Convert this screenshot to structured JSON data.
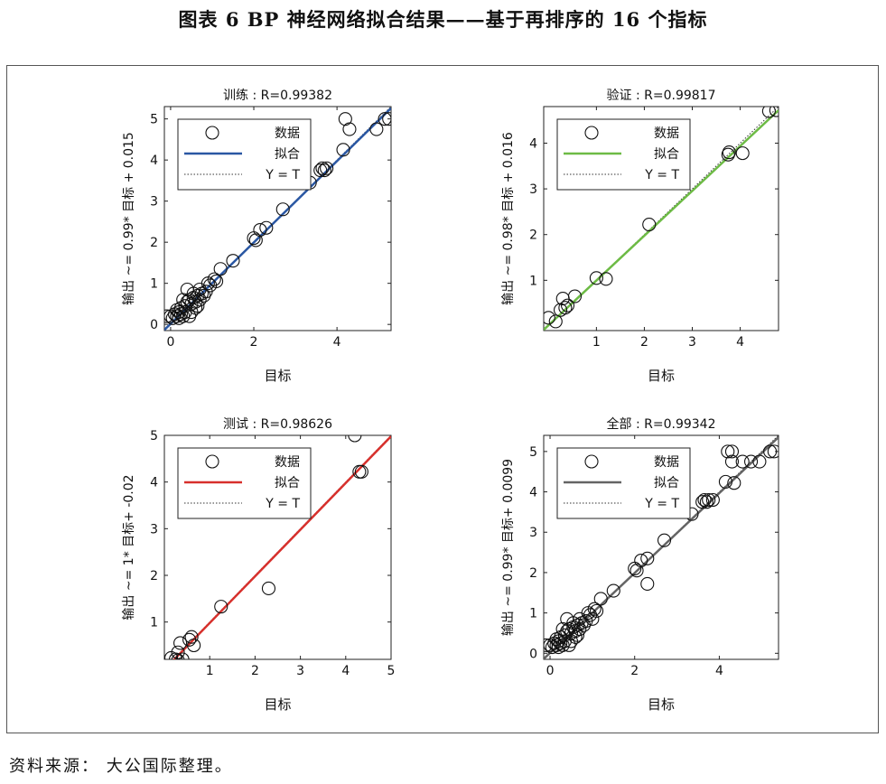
{
  "figure": {
    "title": "图表 6  BP 神经网络拟合结果——基于再排序的 16 个指标",
    "source": "资料来源： 大公国际整理。"
  },
  "chart_data": [
    {
      "type": "scatter",
      "title": "训练 : R=0.99382",
      "xlabel": "目标",
      "ylabel": "输出 ~= 0.99* 目标 + 0.015",
      "xlim": [
        -0.15,
        5.3
      ],
      "ylim": [
        -0.15,
        5.3
      ],
      "xticks": [
        0,
        2,
        4
      ],
      "yticks": [
        0,
        1,
        2,
        3,
        4,
        5
      ],
      "fit": {
        "slope": 0.99,
        "intercept": 0.015,
        "color": "#2a57a3"
      },
      "legend": {
        "position": "top-left",
        "entries": [
          "数据",
          "拟合",
          "Y = T"
        ]
      },
      "points": [
        [
          -0.1,
          0.2
        ],
        [
          0,
          0.2
        ],
        [
          0.05,
          0.15
        ],
        [
          0.1,
          0.25
        ],
        [
          0.15,
          0.2
        ],
        [
          0.2,
          0.3
        ],
        [
          0.25,
          0.4
        ],
        [
          0.3,
          0.2
        ],
        [
          0.35,
          0.45
        ],
        [
          0.4,
          0.55
        ],
        [
          0.45,
          0.6
        ],
        [
          0.5,
          0.5
        ],
        [
          0.55,
          0.65
        ],
        [
          0.6,
          0.55
        ],
        [
          0.65,
          0.7
        ],
        [
          0.7,
          0.6
        ],
        [
          0.75,
          0.75
        ],
        [
          0.8,
          0.7
        ],
        [
          0.85,
          0.8
        ],
        [
          0.95,
          0.95
        ],
        [
          1.05,
          1.1
        ],
        [
          1.1,
          1.05
        ],
        [
          0.3,
          0.6
        ],
        [
          0.4,
          0.85
        ],
        [
          0.5,
          0.3
        ],
        [
          0.6,
          0.4
        ],
        [
          0.2,
          0.15
        ],
        [
          0.35,
          0.3
        ],
        [
          0.45,
          0.2
        ],
        [
          0.55,
          0.75
        ],
        [
          0.7,
          0.85
        ],
        [
          0.9,
          1.0
        ],
        [
          1.2,
          1.35
        ],
        [
          1.5,
          1.55
        ],
        [
          2.0,
          2.1
        ],
        [
          2.05,
          2.05
        ],
        [
          2.15,
          2.3
        ],
        [
          2.3,
          2.35
        ],
        [
          2.7,
          2.8
        ],
        [
          3.35,
          3.45
        ],
        [
          3.6,
          3.75
        ],
        [
          3.65,
          3.8
        ],
        [
          3.7,
          3.75
        ],
        [
          3.75,
          3.8
        ],
        [
          4.15,
          4.25
        ],
        [
          4.2,
          5.0
        ],
        [
          4.3,
          4.75
        ],
        [
          4.95,
          4.75
        ],
        [
          5.15,
          5.0
        ],
        [
          5.25,
          5.0
        ],
        [
          0.15,
          0.35
        ],
        [
          0.25,
          0.25
        ],
        [
          0.65,
          0.45
        ]
      ]
    },
    {
      "type": "scatter",
      "title": "验证 : R=0.99817",
      "xlabel": "目标",
      "ylabel": "输出 ~= 0.98* 目标 + 0.016",
      "xlim": [
        -0.1,
        4.8
      ],
      "ylim": [
        -0.1,
        4.8
      ],
      "xticks": [
        1,
        2,
        3,
        4
      ],
      "yticks": [
        1,
        2,
        3,
        4
      ],
      "fit": {
        "slope": 0.98,
        "intercept": 0.016,
        "color": "#6dbb45"
      },
      "legend": {
        "position": "top-left",
        "entries": [
          "数据",
          "拟合",
          "Y = T"
        ]
      },
      "points": [
        [
          0,
          0.18
        ],
        [
          0.15,
          0.1
        ],
        [
          0.25,
          0.35
        ],
        [
          0.3,
          0.6
        ],
        [
          0.35,
          0.4
        ],
        [
          0.4,
          0.45
        ],
        [
          0.55,
          0.65
        ],
        [
          1.0,
          1.05
        ],
        [
          1.2,
          1.03
        ],
        [
          2.1,
          2.22
        ],
        [
          3.75,
          3.75
        ],
        [
          3.77,
          3.8
        ],
        [
          4.05,
          3.78
        ],
        [
          4.6,
          4.7
        ],
        [
          4.75,
          4.72
        ]
      ]
    },
    {
      "type": "scatter",
      "title": "测试 : R=0.98626",
      "xlabel": "目标",
      "ylabel": "输出 ~= 1* 目标+ -0.02",
      "xlim": [
        0,
        5
      ],
      "ylim": [
        0.2,
        5
      ],
      "xticks": [
        1,
        2,
        3,
        4,
        5
      ],
      "yticks": [
        1,
        2,
        3,
        4,
        5
      ],
      "fit": {
        "slope": 1,
        "intercept": -0.02,
        "color": "#d7302c"
      },
      "legend": {
        "position": "top-left",
        "entries": [
          "数据",
          "拟合",
          "Y = T"
        ]
      },
      "points": [
        [
          0.15,
          0.23
        ],
        [
          0.25,
          0.2
        ],
        [
          0.3,
          0.35
        ],
        [
          0.3,
          0.18
        ],
        [
          0.35,
          0.55
        ],
        [
          0.4,
          0.2
        ],
        [
          0.55,
          0.62
        ],
        [
          0.6,
          0.68
        ],
        [
          0.65,
          0.5
        ],
        [
          1.25,
          1.33
        ],
        [
          2.3,
          1.72
        ],
        [
          4.2,
          5.0
        ],
        [
          4.3,
          4.22
        ],
        [
          4.35,
          4.22
        ]
      ]
    },
    {
      "type": "scatter",
      "title": "全部 : R=0.99342",
      "xlabel": "目标",
      "ylabel": "输出 ~= 0.99* 目标+ 0.0099",
      "xlim": [
        -0.15,
        5.4
      ],
      "ylim": [
        -0.15,
        5.4
      ],
      "xticks": [
        0,
        2,
        4
      ],
      "yticks": [
        0,
        1,
        2,
        3,
        4,
        5
      ],
      "fit": {
        "slope": 0.99,
        "intercept": 0.0099,
        "color": "#646464"
      },
      "legend": {
        "position": "top-left",
        "entries": [
          "数据",
          "拟合",
          "Y = T"
        ]
      },
      "points": [
        [
          -0.1,
          0.2
        ],
        [
          0,
          0.2
        ],
        [
          0.05,
          0.15
        ],
        [
          0.1,
          0.25
        ],
        [
          0.15,
          0.2
        ],
        [
          0.2,
          0.3
        ],
        [
          0.25,
          0.4
        ],
        [
          0.3,
          0.2
        ],
        [
          0.35,
          0.45
        ],
        [
          0.4,
          0.55
        ],
        [
          0.45,
          0.6
        ],
        [
          0.5,
          0.5
        ],
        [
          0.55,
          0.65
        ],
        [
          0.6,
          0.55
        ],
        [
          0.65,
          0.7
        ],
        [
          0.7,
          0.6
        ],
        [
          0.75,
          0.75
        ],
        [
          0.8,
          0.7
        ],
        [
          0.85,
          0.8
        ],
        [
          0.95,
          0.95
        ],
        [
          1.05,
          1.1
        ],
        [
          1.1,
          1.05
        ],
        [
          0.3,
          0.6
        ],
        [
          0.4,
          0.85
        ],
        [
          0.5,
          0.3
        ],
        [
          0.6,
          0.4
        ],
        [
          0.2,
          0.15
        ],
        [
          0.35,
          0.3
        ],
        [
          0.45,
          0.2
        ],
        [
          0.55,
          0.75
        ],
        [
          0.7,
          0.85
        ],
        [
          0.9,
          1.0
        ],
        [
          1.2,
          1.35
        ],
        [
          1.5,
          1.55
        ],
        [
          2.0,
          2.1
        ],
        [
          2.05,
          2.05
        ],
        [
          2.15,
          2.3
        ],
        [
          2.3,
          2.35
        ],
        [
          2.3,
          1.72
        ],
        [
          2.7,
          2.8
        ],
        [
          3.35,
          3.45
        ],
        [
          3.6,
          3.75
        ],
        [
          3.65,
          3.8
        ],
        [
          3.7,
          3.75
        ],
        [
          3.75,
          3.8
        ],
        [
          3.85,
          3.8
        ],
        [
          4.15,
          4.25
        ],
        [
          4.2,
          5.0
        ],
        [
          4.3,
          5.0
        ],
        [
          4.3,
          4.75
        ],
        [
          4.35,
          4.22
        ],
        [
          4.55,
          4.75
        ],
        [
          4.75,
          4.75
        ],
        [
          4.95,
          4.75
        ],
        [
          5.2,
          5.0
        ],
        [
          5.3,
          5.0
        ],
        [
          0.15,
          0.35
        ],
        [
          0.25,
          0.25
        ],
        [
          0.65,
          0.45
        ],
        [
          1.0,
          0.85
        ]
      ]
    }
  ]
}
